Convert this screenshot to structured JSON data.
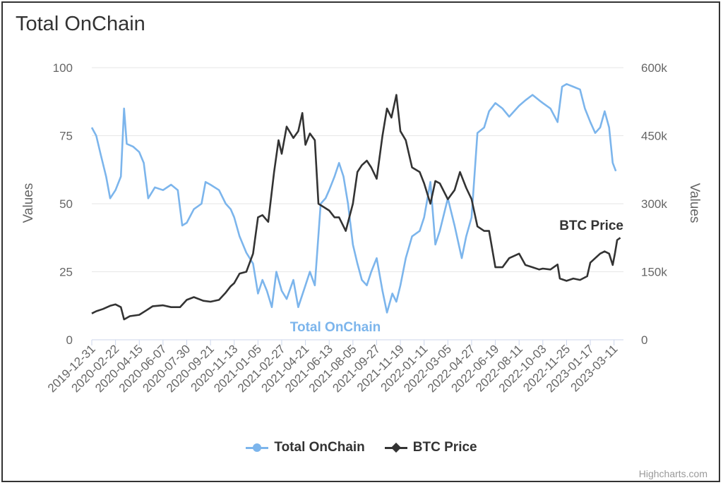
{
  "title": "Total OnChain",
  "credit": "Highcharts.com",
  "colors": {
    "onchain": "#7cb5ec",
    "btc": "#333333",
    "grid": "#e6e6e6",
    "text": "#666666"
  },
  "chart_data": {
    "type": "line",
    "title": "Total OnChain",
    "left_axis": {
      "title": "Values",
      "range": [
        0,
        100
      ],
      "ticks": [
        "0",
        "25",
        "50",
        "75",
        "100"
      ]
    },
    "right_axis": {
      "title": "Values",
      "range": [
        0,
        600000
      ],
      "ticks": [
        "0",
        "150k",
        "300k",
        "450k",
        "600k"
      ]
    },
    "x_range": [
      "2019-12-31",
      "2023-04-01"
    ],
    "x_tick_labels": [
      "2019-12-31",
      "2020-02-22",
      "2020-04-15",
      "2020-06-07",
      "2020-07-30",
      "2020-09-21",
      "2020-11-13",
      "2021-01-05",
      "2021-02-27",
      "2021-04-21",
      "2021-06-13",
      "2021-08-05",
      "2021-09-27",
      "2021-11-19",
      "2022-01-11",
      "2022-03-05",
      "2022-04-27",
      "2022-06-19",
      "2022-08-11",
      "2022-10-03",
      "2022-11-25",
      "2023-01-17",
      "2023-03-11"
    ],
    "legend": "bottom-center",
    "grid": true,
    "series": [
      {
        "name": "Total OnChain",
        "axis": "left",
        "label": "Total OnChain",
        "points": [
          [
            "2019-12-31",
            78
          ],
          [
            "2020-01-10",
            75
          ],
          [
            "2020-01-20",
            68
          ],
          [
            "2020-02-01",
            60
          ],
          [
            "2020-02-10",
            52
          ],
          [
            "2020-02-22",
            55
          ],
          [
            "2020-03-05",
            60
          ],
          [
            "2020-03-12",
            85
          ],
          [
            "2020-03-18",
            72
          ],
          [
            "2020-04-01",
            71
          ],
          [
            "2020-04-15",
            69
          ],
          [
            "2020-04-25",
            65
          ],
          [
            "2020-05-05",
            52
          ],
          [
            "2020-05-20",
            56
          ],
          [
            "2020-06-07",
            55
          ],
          [
            "2020-06-25",
            57
          ],
          [
            "2020-07-10",
            55
          ],
          [
            "2020-07-20",
            42
          ],
          [
            "2020-07-30",
            43
          ],
          [
            "2020-08-15",
            48
          ],
          [
            "2020-09-01",
            50
          ],
          [
            "2020-09-10",
            58
          ],
          [
            "2020-09-21",
            57
          ],
          [
            "2020-10-10",
            55
          ],
          [
            "2020-10-25",
            50
          ],
          [
            "2020-11-05",
            48
          ],
          [
            "2020-11-13",
            45
          ],
          [
            "2020-11-25",
            38
          ],
          [
            "2020-12-10",
            32
          ],
          [
            "2020-12-25",
            28
          ],
          [
            "2021-01-05",
            17
          ],
          [
            "2021-01-15",
            22
          ],
          [
            "2021-01-25",
            18
          ],
          [
            "2021-02-05",
            12
          ],
          [
            "2021-02-15",
            25
          ],
          [
            "2021-02-27",
            18
          ],
          [
            "2021-03-10",
            15
          ],
          [
            "2021-03-25",
            22
          ],
          [
            "2021-04-05",
            12
          ],
          [
            "2021-04-21",
            20
          ],
          [
            "2021-05-01",
            25
          ],
          [
            "2021-05-12",
            20
          ],
          [
            "2021-05-25",
            50
          ],
          [
            "2021-06-05",
            52
          ],
          [
            "2021-06-13",
            55
          ],
          [
            "2021-06-25",
            60
          ],
          [
            "2021-07-05",
            65
          ],
          [
            "2021-07-15",
            60
          ],
          [
            "2021-07-25",
            50
          ],
          [
            "2021-08-05",
            35
          ],
          [
            "2021-08-15",
            28
          ],
          [
            "2021-08-25",
            22
          ],
          [
            "2021-09-05",
            20
          ],
          [
            "2021-09-15",
            25
          ],
          [
            "2021-09-27",
            30
          ],
          [
            "2021-10-10",
            18
          ],
          [
            "2021-10-20",
            10
          ],
          [
            "2021-11-01",
            17
          ],
          [
            "2021-11-10",
            14
          ],
          [
            "2021-11-19",
            20
          ],
          [
            "2021-12-01",
            30
          ],
          [
            "2021-12-15",
            38
          ],
          [
            "2022-01-01",
            40
          ],
          [
            "2022-01-11",
            45
          ],
          [
            "2022-01-25",
            58
          ],
          [
            "2022-02-05",
            35
          ],
          [
            "2022-02-15",
            40
          ],
          [
            "2022-03-05",
            52
          ],
          [
            "2022-03-20",
            42
          ],
          [
            "2022-04-05",
            30
          ],
          [
            "2022-04-15",
            38
          ],
          [
            "2022-04-27",
            45
          ],
          [
            "2022-05-10",
            76
          ],
          [
            "2022-05-25",
            78
          ],
          [
            "2022-06-05",
            84
          ],
          [
            "2022-06-19",
            87
          ],
          [
            "2022-07-05",
            85
          ],
          [
            "2022-07-20",
            82
          ],
          [
            "2022-08-11",
            86
          ],
          [
            "2022-08-25",
            88
          ],
          [
            "2022-09-10",
            90
          ],
          [
            "2022-09-25",
            88
          ],
          [
            "2022-10-03",
            87
          ],
          [
            "2022-10-20",
            85
          ],
          [
            "2022-11-05",
            80
          ],
          [
            "2022-11-15",
            93
          ],
          [
            "2022-11-25",
            94
          ],
          [
            "2022-12-10",
            93
          ],
          [
            "2022-12-25",
            92
          ],
          [
            "2023-01-05",
            85
          ],
          [
            "2023-01-17",
            80
          ],
          [
            "2023-01-28",
            76
          ],
          [
            "2023-02-08",
            78
          ],
          [
            "2023-02-18",
            84
          ],
          [
            "2023-02-28",
            78
          ],
          [
            "2023-03-08",
            65
          ],
          [
            "2023-03-15",
            62
          ]
        ]
      },
      {
        "name": "BTC Price",
        "axis": "right",
        "label": "BTC Price",
        "points": [
          [
            "2019-12-31",
            58000
          ],
          [
            "2020-01-10",
            63000
          ],
          [
            "2020-01-25",
            68000
          ],
          [
            "2020-02-10",
            75000
          ],
          [
            "2020-02-22",
            78000
          ],
          [
            "2020-03-05",
            72000
          ],
          [
            "2020-03-12",
            45000
          ],
          [
            "2020-03-25",
            52000
          ],
          [
            "2020-04-15",
            55000
          ],
          [
            "2020-05-01",
            65000
          ],
          [
            "2020-05-15",
            74000
          ],
          [
            "2020-06-07",
            76000
          ],
          [
            "2020-06-25",
            72000
          ],
          [
            "2020-07-15",
            72000
          ],
          [
            "2020-07-30",
            88000
          ],
          [
            "2020-08-15",
            94000
          ],
          [
            "2020-09-05",
            86000
          ],
          [
            "2020-09-21",
            84000
          ],
          [
            "2020-10-10",
            88000
          ],
          [
            "2020-10-25",
            104000
          ],
          [
            "2020-11-05",
            118000
          ],
          [
            "2020-11-13",
            125000
          ],
          [
            "2020-11-25",
            146000
          ],
          [
            "2020-12-10",
            150000
          ],
          [
            "2020-12-25",
            190000
          ],
          [
            "2021-01-05",
            270000
          ],
          [
            "2021-01-15",
            275000
          ],
          [
            "2021-01-28",
            260000
          ],
          [
            "2021-02-10",
            370000
          ],
          [
            "2021-02-20",
            440000
          ],
          [
            "2021-02-27",
            410000
          ],
          [
            "2021-03-10",
            470000
          ],
          [
            "2021-03-25",
            445000
          ],
          [
            "2021-04-05",
            460000
          ],
          [
            "2021-04-14",
            500000
          ],
          [
            "2021-04-21",
            430000
          ],
          [
            "2021-05-01",
            455000
          ],
          [
            "2021-05-12",
            440000
          ],
          [
            "2021-05-20",
            300000
          ],
          [
            "2021-06-05",
            290000
          ],
          [
            "2021-06-13",
            285000
          ],
          [
            "2021-06-25",
            270000
          ],
          [
            "2021-07-05",
            270000
          ],
          [
            "2021-07-20",
            240000
          ],
          [
            "2021-08-05",
            300000
          ],
          [
            "2021-08-15",
            370000
          ],
          [
            "2021-08-25",
            385000
          ],
          [
            "2021-09-05",
            395000
          ],
          [
            "2021-09-15",
            380000
          ],
          [
            "2021-09-27",
            355000
          ],
          [
            "2021-10-10",
            450000
          ],
          [
            "2021-10-20",
            510000
          ],
          [
            "2021-10-30",
            490000
          ],
          [
            "2021-11-10",
            540000
          ],
          [
            "2021-11-19",
            460000
          ],
          [
            "2021-12-01",
            440000
          ],
          [
            "2021-12-15",
            380000
          ],
          [
            "2022-01-01",
            370000
          ],
          [
            "2022-01-11",
            345000
          ],
          [
            "2022-01-25",
            300000
          ],
          [
            "2022-02-05",
            350000
          ],
          [
            "2022-02-15",
            345000
          ],
          [
            "2022-03-05",
            310000
          ],
          [
            "2022-03-20",
            330000
          ],
          [
            "2022-04-01",
            370000
          ],
          [
            "2022-04-15",
            335000
          ],
          [
            "2022-04-27",
            310000
          ],
          [
            "2022-05-10",
            250000
          ],
          [
            "2022-05-25",
            240000
          ],
          [
            "2022-06-05",
            240000
          ],
          [
            "2022-06-19",
            160000
          ],
          [
            "2022-07-05",
            160000
          ],
          [
            "2022-07-20",
            180000
          ],
          [
            "2022-08-11",
            190000
          ],
          [
            "2022-08-25",
            165000
          ],
          [
            "2022-09-10",
            160000
          ],
          [
            "2022-09-25",
            155000
          ],
          [
            "2022-10-03",
            157000
          ],
          [
            "2022-10-20",
            155000
          ],
          [
            "2022-11-05",
            166000
          ],
          [
            "2022-11-10",
            135000
          ],
          [
            "2022-11-25",
            130000
          ],
          [
            "2022-12-10",
            135000
          ],
          [
            "2022-12-25",
            132000
          ],
          [
            "2023-01-10",
            140000
          ],
          [
            "2023-01-17",
            170000
          ],
          [
            "2023-01-28",
            180000
          ],
          [
            "2023-02-08",
            190000
          ],
          [
            "2023-02-18",
            195000
          ],
          [
            "2023-02-28",
            190000
          ],
          [
            "2023-03-08",
            165000
          ],
          [
            "2023-03-13",
            190000
          ],
          [
            "2023-03-18",
            220000
          ],
          [
            "2023-03-25",
            225000
          ]
        ]
      }
    ]
  },
  "legend_items": [
    {
      "name": "Total OnChain",
      "marker": "circle"
    },
    {
      "name": "BTC Price",
      "marker": "diamond"
    }
  ]
}
